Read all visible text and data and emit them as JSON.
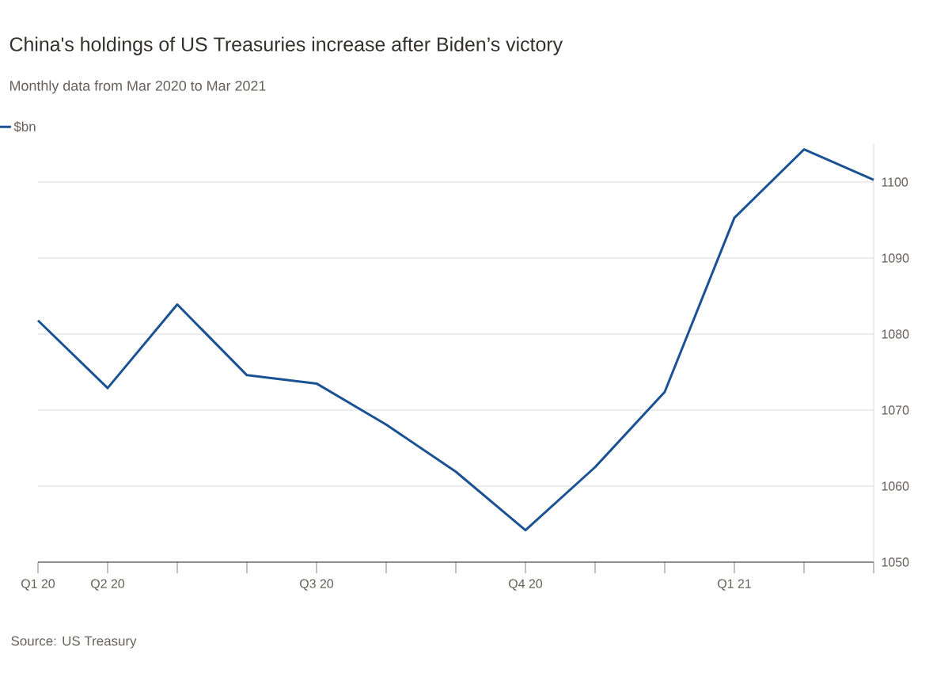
{
  "chart_data": {
    "type": "line",
    "title": "China's holdings of US Treasuries increase after Biden’s victory",
    "subtitle": "Monthly data from Mar 2020 to Mar 2021",
    "categories": [
      "Q1 20",
      "Q2 20",
      null,
      null,
      "Q3 20",
      null,
      null,
      "Q4 20",
      null,
      null,
      "Q1 21",
      null,
      null
    ],
    "series": [
      {
        "name": "$bn",
        "color": "#1a5294",
        "values": [
          1081.8,
          1072.9,
          1083.9,
          1074.6,
          1073.5,
          1068.1,
          1061.9,
          1054.2,
          1062.5,
          1072.4,
          1095.3,
          1104.3,
          1100.3
        ]
      }
    ],
    "ylim": [
      1050,
      1105
    ],
    "yticks": [
      1050,
      1060,
      1070,
      1080,
      1090,
      1100
    ],
    "grid": "y",
    "legend": "top left",
    "marker": "none",
    "line_style": "solid",
    "annotations": [
      "Source: US Treasury"
    ]
  }
}
